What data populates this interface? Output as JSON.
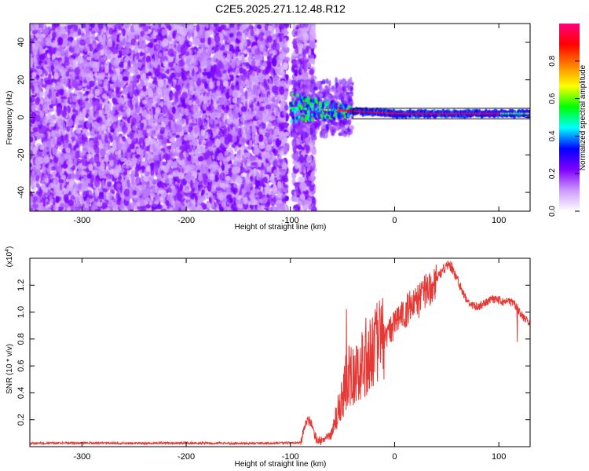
{
  "title": "C2E5.2025.271.12.48.R12",
  "chart_data": [
    {
      "type": "heatmap",
      "xlabel": "Height of straight line (km)",
      "ylabel": "Frequency (Hz)",
      "xlim": [
        -350,
        130
      ],
      "ylim": [
        -50,
        50
      ],
      "xticks": [
        -300,
        -200,
        -100,
        0,
        100
      ],
      "xtick_labels": [
        "-300",
        "-200",
        "-100",
        "0",
        "100"
      ],
      "yticks": [
        -40,
        -20,
        0,
        20,
        40
      ],
      "ytick_labels": [
        "-40",
        "-20",
        "0",
        "20",
        "40"
      ],
      "colorbar": {
        "label": "Normalized spectral amplitude",
        "range": [
          0,
          1
        ],
        "ticks": [
          0.0,
          0.2,
          0.4,
          0.6,
          0.8
        ],
        "tick_labels": [
          "0.0",
          "0.2",
          "0.4",
          "0.6",
          "0.8"
        ],
        "colors": [
          "#ffffff",
          "#cc99ff",
          "#8000ff",
          "#0000ff",
          "#00ffff",
          "#00ff00",
          "#ffff00",
          "#ff8000",
          "#ff0000",
          "#ff0080"
        ]
      },
      "regions": [
        {
          "name": "noise",
          "x": [
            -350,
            -103
          ],
          "y": [
            -50,
            50
          ],
          "amplitude": 0.15
        },
        {
          "name": "noise",
          "x": [
            -97,
            -77
          ],
          "y": [
            -50,
            50
          ],
          "amplitude": 0.1
        },
        {
          "name": "carrier",
          "x": [
            -100,
            130
          ],
          "y_center_start": 5,
          "y_center_end": 2,
          "amplitude_peak": 0.95
        }
      ]
    },
    {
      "type": "line",
      "xlabel": "Height of straight line (km)",
      "ylabel": "SNR (10 * v/v)",
      "scale_label": "(x10",
      "scale_exp": "4",
      "scale_close": ")",
      "xlim": [
        -350,
        130
      ],
      "ylim": [
        0,
        1.4
      ],
      "xticks": [
        -300,
        -200,
        -100,
        0,
        100
      ],
      "xtick_labels": [
        "-300",
        "-200",
        "-100",
        "0",
        "100"
      ],
      "yticks": [
        0.2,
        0.4,
        0.6,
        0.8,
        1.0,
        1.2
      ],
      "ytick_labels": [
        "0.2",
        "0.4",
        "0.6",
        "0.8",
        "1.0",
        "1.2"
      ],
      "series": [
        {
          "name": "SNR",
          "color": "#e53935",
          "x": [
            -350,
            -300,
            -250,
            -200,
            -150,
            -120,
            -100,
            -90,
            -85,
            -80,
            -75,
            -70,
            -60,
            -55,
            -50,
            -45,
            -40,
            -35,
            -30,
            -25,
            -20,
            -15,
            -10,
            -5,
            0,
            5,
            10,
            15,
            20,
            25,
            30,
            35,
            40,
            45,
            50,
            55,
            60,
            65,
            70,
            75,
            80,
            85,
            90,
            95,
            100,
            105,
            110,
            115,
            120,
            125,
            130
          ],
          "values": [
            0.025,
            0.028,
            0.025,
            0.027,
            0.025,
            0.026,
            0.028,
            0.03,
            0.2,
            0.18,
            0.05,
            0.04,
            0.1,
            0.25,
            0.35,
            0.55,
            0.5,
            0.55,
            0.65,
            0.7,
            0.72,
            0.75,
            0.8,
            0.85,
            0.9,
            0.95,
            1.0,
            1.04,
            1.06,
            1.1,
            1.15,
            1.2,
            1.25,
            1.3,
            1.35,
            1.33,
            1.25,
            1.15,
            1.08,
            1.05,
            1.04,
            1.06,
            1.08,
            1.1,
            1.09,
            1.07,
            1.08,
            1.06,
            1.0,
            0.95,
            0.92
          ]
        }
      ]
    }
  ]
}
